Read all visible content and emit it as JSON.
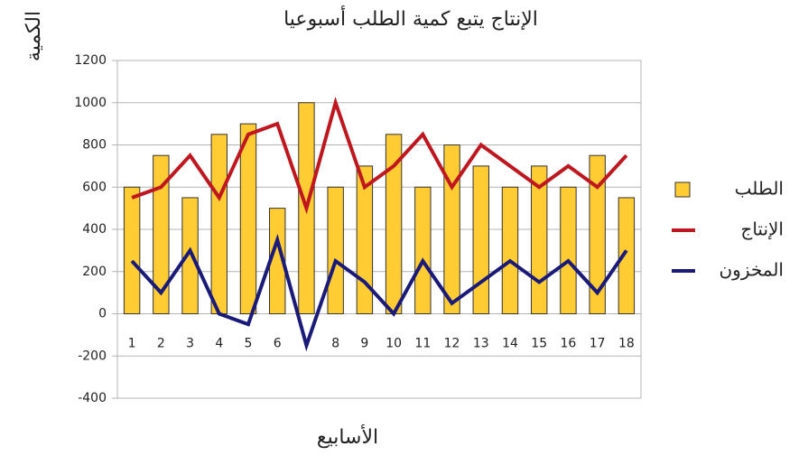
{
  "chart_data": {
    "type": "bar",
    "title": "الإنتاج يتبع كمية الطلب أسبوعيا",
    "x_label": "الأسابيع",
    "y_label": "الكمية",
    "categories": [
      "1",
      "2",
      "3",
      "4",
      "5",
      "6",
      null,
      "8",
      "9",
      "10",
      "11",
      "12",
      "13",
      "14",
      "15",
      "16",
      "17",
      "18"
    ],
    "series": [
      {
        "name": "الطلب",
        "type": "bar",
        "color": "#ffcc33",
        "values": [
          600,
          750,
          550,
          850,
          900,
          500,
          1000,
          600,
          700,
          850,
          600,
          800,
          700,
          600,
          700,
          600,
          750,
          550
        ]
      },
      {
        "name": "الإنتاج",
        "type": "line",
        "color": "#c0161f",
        "values": [
          550,
          600,
          750,
          550,
          850,
          900,
          500,
          1000,
          600,
          700,
          850,
          600,
          800,
          700,
          600,
          700,
          600,
          750
        ]
      },
      {
        "name": "المخزون",
        "type": "line",
        "color": "#1a1a7a",
        "values": [
          250,
          100,
          300,
          0,
          -50,
          350,
          -150,
          250,
          150,
          0,
          250,
          50,
          150,
          250,
          150,
          250,
          100,
          300
        ]
      }
    ],
    "ylim": [
      -400,
      1200
    ],
    "yticks": [
      -400,
      -200,
      0,
      200,
      400,
      600,
      800,
      1000,
      1200
    ],
    "grid": true,
    "legend": "right"
  }
}
